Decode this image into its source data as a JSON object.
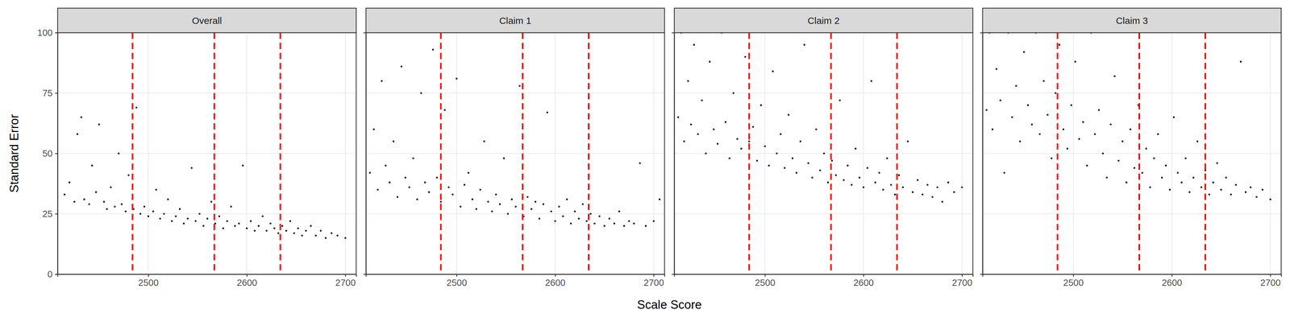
{
  "xlabel": "Scale Score",
  "ylabel": "Standard Error",
  "chart_data": [
    {
      "type": "scatter",
      "title": "Overall",
      "color": "#000000",
      "grid": true,
      "xlim": [
        2408,
        2711
      ],
      "ylim": [
        0,
        100
      ],
      "xticks": [
        2500,
        2600,
        2700
      ],
      "yticks": [
        0,
        25,
        50,
        75,
        100
      ],
      "cut_scores": [
        2484,
        2567,
        2634
      ],
      "x": [
        2415,
        2420,
        2425,
        2428,
        2432,
        2435,
        2440,
        2443,
        2447,
        2450,
        2455,
        2458,
        2462,
        2466,
        2470,
        2473,
        2477,
        2480,
        2485,
        2488,
        2492,
        2496,
        2500,
        2505,
        2508,
        2512,
        2516,
        2520,
        2524,
        2528,
        2532,
        2536,
        2540,
        2544,
        2548,
        2552,
        2556,
        2560,
        2564,
        2568,
        2572,
        2576,
        2580,
        2584,
        2588,
        2592,
        2596,
        2600,
        2604,
        2608,
        2612,
        2616,
        2620,
        2624,
        2628,
        2632,
        2636,
        2640,
        2644,
        2648,
        2652,
        2656,
        2660,
        2665,
        2670,
        2675,
        2680,
        2686,
        2692,
        2700
      ],
      "values": [
        33,
        38,
        30,
        58,
        65,
        31,
        29,
        45,
        34,
        62,
        30,
        27,
        36,
        28,
        50,
        29,
        26,
        41,
        27,
        69,
        25,
        28,
        24,
        26,
        35,
        23,
        25,
        31,
        22,
        24,
        27,
        21,
        23,
        44,
        22,
        25,
        20,
        23,
        30,
        21,
        24,
        19,
        22,
        28,
        20,
        21,
        45,
        19,
        22,
        18,
        20,
        24,
        18,
        21,
        19,
        17,
        20,
        18,
        22,
        17,
        19,
        16,
        18,
        20,
        16,
        18,
        15,
        17,
        16,
        15
      ]
    },
    {
      "type": "scatter",
      "title": "Claim 1",
      "color": "#000000",
      "grid": true,
      "tick_labels": "x",
      "xlim": [
        2408,
        2711
      ],
      "ylim": [
        0,
        100
      ],
      "xticks": [
        2500,
        2600,
        2700
      ],
      "yticks": [
        0,
        25,
        50,
        75,
        100
      ],
      "cut_scores": [
        2484,
        2567,
        2634
      ],
      "x": [
        2412,
        2416,
        2420,
        2424,
        2428,
        2432,
        2436,
        2440,
        2444,
        2448,
        2452,
        2456,
        2460,
        2464,
        2468,
        2472,
        2476,
        2480,
        2484,
        2488,
        2492,
        2496,
        2500,
        2504,
        2508,
        2512,
        2516,
        2520,
        2524,
        2528,
        2532,
        2536,
        2540,
        2544,
        2548,
        2552,
        2556,
        2560,
        2564,
        2568,
        2572,
        2576,
        2580,
        2584,
        2588,
        2592,
        2596,
        2600,
        2604,
        2608,
        2612,
        2616,
        2620,
        2624,
        2628,
        2632,
        2636,
        2640,
        2645,
        2650,
        2655,
        2660,
        2665,
        2670,
        2675,
        2680,
        2686,
        2692,
        2700,
        2706
      ],
      "values": [
        42,
        60,
        35,
        80,
        45,
        38,
        55,
        32,
        86,
        40,
        36,
        48,
        31,
        75,
        38,
        34,
        93,
        40,
        30,
        68,
        36,
        33,
        81,
        28,
        37,
        42,
        31,
        27,
        35,
        55,
        30,
        26,
        33,
        29,
        48,
        25,
        31,
        28,
        78,
        24,
        32,
        27,
        30,
        23,
        29,
        67,
        26,
        22,
        28,
        24,
        31,
        21,
        26,
        23,
        29,
        22,
        25,
        21,
        24,
        20,
        23,
        21,
        26,
        20,
        22,
        21,
        46,
        20,
        22,
        31
      ]
    },
    {
      "type": "scatter",
      "title": "Claim 2",
      "color": "#000000",
      "grid": true,
      "tick_labels": "x",
      "xlim": [
        2408,
        2711
      ],
      "ylim": [
        0,
        100
      ],
      "xticks": [
        2500,
        2600,
        2700
      ],
      "yticks": [
        0,
        25,
        50,
        75,
        100
      ],
      "cut_scores": [
        2484,
        2567,
        2634
      ],
      "x": [
        2412,
        2415,
        2418,
        2422,
        2425,
        2428,
        2432,
        2436,
        2440,
        2444,
        2448,
        2452,
        2456,
        2460,
        2464,
        2468,
        2472,
        2476,
        2480,
        2484,
        2488,
        2492,
        2496,
        2500,
        2504,
        2508,
        2512,
        2516,
        2520,
        2524,
        2528,
        2532,
        2536,
        2540,
        2544,
        2548,
        2552,
        2556,
        2560,
        2564,
        2568,
        2572,
        2576,
        2580,
        2584,
        2588,
        2592,
        2596,
        2600,
        2604,
        2608,
        2612,
        2616,
        2620,
        2624,
        2628,
        2632,
        2636,
        2640,
        2645,
        2650,
        2655,
        2660,
        2665,
        2670,
        2675,
        2680,
        2686,
        2692,
        2700
      ],
      "values": [
        65,
        100,
        55,
        80,
        62,
        95,
        58,
        72,
        50,
        88,
        60,
        54,
        100,
        63,
        48,
        75,
        56,
        52,
        90,
        55,
        61,
        47,
        70,
        53,
        45,
        84,
        50,
        58,
        44,
        66,
        48,
        42,
        55,
        95,
        46,
        40,
        60,
        43,
        50,
        38,
        47,
        41,
        72,
        39,
        45,
        37,
        52,
        40,
        36,
        44,
        80,
        38,
        42,
        35,
        48,
        37,
        33,
        41,
        36,
        55,
        34,
        39,
        33,
        37,
        32,
        36,
        30,
        38,
        34,
        36
      ]
    },
    {
      "type": "scatter",
      "title": "Claim 3",
      "color": "#000000",
      "grid": true,
      "tick_labels": "x",
      "xlim": [
        2408,
        2711
      ],
      "ylim": [
        0,
        100
      ],
      "xticks": [
        2500,
        2600,
        2700
      ],
      "yticks": [
        0,
        25,
        50,
        75,
        100
      ],
      "cut_scores": [
        2484,
        2567,
        2634
      ],
      "x": [
        2412,
        2415,
        2418,
        2422,
        2426,
        2430,
        2434,
        2438,
        2442,
        2446,
        2450,
        2454,
        2458,
        2462,
        2466,
        2470,
        2474,
        2478,
        2482,
        2486,
        2490,
        2494,
        2498,
        2502,
        2506,
        2510,
        2514,
        2518,
        2522,
        2526,
        2530,
        2534,
        2538,
        2542,
        2546,
        2550,
        2554,
        2558,
        2562,
        2566,
        2570,
        2574,
        2578,
        2582,
        2586,
        2590,
        2594,
        2598,
        2602,
        2606,
        2610,
        2614,
        2618,
        2622,
        2626,
        2630,
        2634,
        2638,
        2642,
        2646,
        2650,
        2655,
        2660,
        2665,
        2670,
        2675,
        2680,
        2686,
        2692,
        2700
      ],
      "values": [
        68,
        100,
        60,
        85,
        72,
        42,
        100,
        65,
        78,
        55,
        92,
        70,
        62,
        100,
        58,
        80,
        66,
        48,
        75,
        95,
        60,
        52,
        70,
        88,
        56,
        63,
        45,
        100,
        58,
        68,
        50,
        40,
        62,
        82,
        47,
        55,
        38,
        60,
        44,
        70,
        42,
        52,
        36,
        48,
        58,
        40,
        45,
        35,
        65,
        42,
        38,
        48,
        34,
        40,
        55,
        36,
        43,
        33,
        38,
        46,
        35,
        40,
        33,
        37,
        88,
        34,
        36,
        32,
        35,
        31
      ]
    }
  ]
}
